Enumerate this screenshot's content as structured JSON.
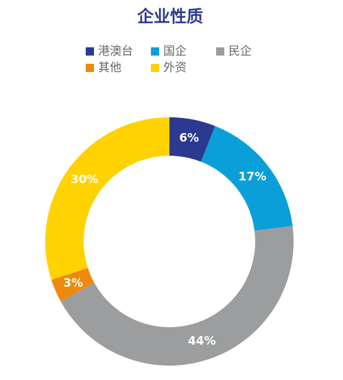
{
  "chart_data": {
    "type": "donut",
    "title": "企业性质",
    "categories": [
      "港澳台",
      "国企",
      "民企",
      "其他",
      "外资"
    ],
    "values": [
      6,
      17,
      44,
      3,
      30
    ],
    "value_labels": [
      "6%",
      "17%",
      "44%",
      "3%",
      "30%"
    ],
    "colors": [
      "#2b3990",
      "#0b9fda",
      "#9b9d9e",
      "#ee8a0b",
      "#ffd200"
    ]
  }
}
